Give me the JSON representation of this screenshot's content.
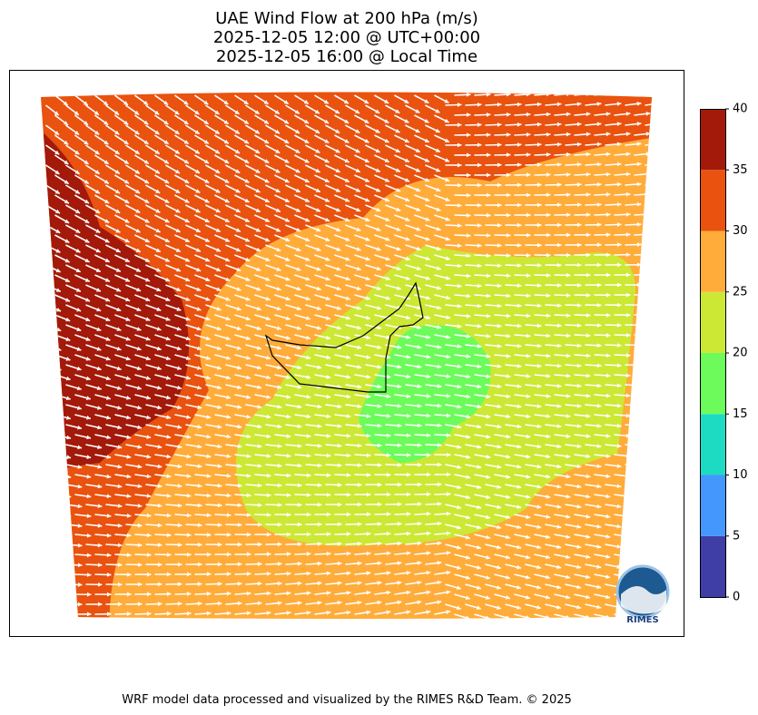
{
  "header": {
    "title_lines": [
      "UAE Wind Flow at 200 hPa (m/s)",
      "2025-12-05 12:00 @ UTC+00:00",
      "2025-12-05 16:00 @ Local Time"
    ]
  },
  "colorbar": {
    "lim": [
      0,
      40
    ],
    "ticks": [
      0,
      5,
      10,
      15,
      20,
      25,
      30,
      35,
      40
    ],
    "colors": [
      "#3f3ea6",
      "#4497fd",
      "#1ddbc2",
      "#6cfb5a",
      "#cce834",
      "#ffac3a",
      "#e9520f",
      "#a3190a"
    ]
  },
  "logo": {
    "text": "RIMES"
  },
  "footer": {
    "text": "WRF model data processed and visualized by the RIMES R&D Team. © 2025"
  }
}
